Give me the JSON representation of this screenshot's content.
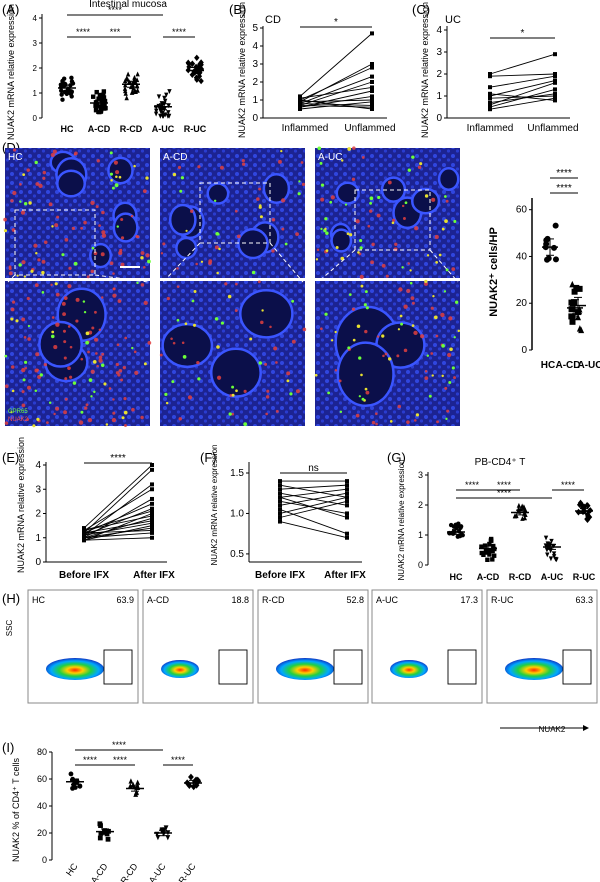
{
  "panels": {
    "A": {
      "letter": "(A)",
      "title": "Intestinal mucosa",
      "ylabel": "NUAK2 mRNA relative expression",
      "yticks": [
        "0",
        "1",
        "2",
        "3",
        "4"
      ],
      "categories": [
        "HC",
        "A-CD",
        "R-CD",
        "A-UC",
        "R-UC"
      ],
      "sig": [
        "****",
        "****",
        "***",
        "****"
      ]
    },
    "B": {
      "letter": "(B)",
      "tag": "CD",
      "ylabel": "NUAK2 mRNA relative expression",
      "yticks": [
        "0",
        "1",
        "2",
        "3",
        "4",
        "5"
      ],
      "categories": [
        "Inflammed",
        "Unflammed"
      ],
      "sig": "*"
    },
    "C": {
      "letter": "(C)",
      "tag": "UC",
      "ylabel": "NUAK2 mRNA relative expression",
      "yticks": [
        "0",
        "1",
        "2",
        "3",
        "4"
      ],
      "categories": [
        "Inflammed",
        "Unflammed"
      ],
      "sig": "*"
    },
    "D": {
      "letter": "(D)",
      "images": [
        "HC",
        "A-CD",
        "A-UC"
      ],
      "legend_green": "GPR65",
      "legend_red": "NUAK2",
      "ylabel": "NUAK2⁺ cells/HP",
      "yticks": [
        "0",
        "20",
        "40",
        "60"
      ],
      "categories": [
        "HC",
        "A-CD",
        "A-UC"
      ],
      "sig": [
        "****",
        "****"
      ]
    },
    "E": {
      "letter": "(E)",
      "ylabel": "NUAK2 mRNA relative expression",
      "yticks": [
        "0",
        "1",
        "2",
        "3",
        "4"
      ],
      "categories": [
        "Before IFX",
        "After IFX"
      ],
      "sig": "****"
    },
    "F": {
      "letter": "(F)",
      "ylabel": "NUAK2 mRNA relative expression",
      "yticks": [
        "0.5",
        "1.0",
        "1.5"
      ],
      "categories": [
        "Before IFX",
        "After IFX"
      ],
      "sig": "ns"
    },
    "G": {
      "letter": "(G)",
      "title": "PB-CD4⁺ T",
      "ylabel": "NUAK2 mRNA relative expression",
      "yticks": [
        "0",
        "1",
        "2",
        "3"
      ],
      "categories": [
        "HC",
        "A-CD",
        "R-CD",
        "A-UC",
        "R-UC"
      ],
      "sig": [
        "****",
        "****",
        "****",
        "****"
      ]
    },
    "H": {
      "letter": "(H)",
      "yaxis": "SSC",
      "xaxis": "NUAK2",
      "plots": [
        {
          "name": "HC",
          "value": "63.9"
        },
        {
          "name": "A-CD",
          "value": "18.8"
        },
        {
          "name": "R-CD",
          "value": "52.8"
        },
        {
          "name": "A-UC",
          "value": "17.3"
        },
        {
          "name": "R-UC",
          "value": "63.3"
        }
      ]
    },
    "I": {
      "letter": "(I)",
      "ylabel": "NUAK2 % of CD4⁺ T cells",
      "yticks": [
        "0",
        "20",
        "40",
        "60",
        "80"
      ],
      "categories": [
        "HC",
        "A-CD",
        "R-CD",
        "A-UC",
        "R-UC"
      ],
      "sig": [
        "****",
        "****",
        "****",
        "****"
      ]
    }
  },
  "colors": {
    "image_bg": "#1a1f8f",
    "nuclei": "#2b3fd8",
    "red": "#e04040",
    "green": "#6cff3a"
  },
  "chart_data": [
    {
      "type": "scatter",
      "panel": "A",
      "categories": [
        "HC",
        "A-CD",
        "R-CD",
        "A-UC",
        "R-UC"
      ],
      "means": [
        1.2,
        0.6,
        1.35,
        0.45,
        1.9
      ],
      "ylim": [
        0,
        4
      ]
    },
    {
      "type": "line",
      "panel": "B",
      "x": [
        "Inflammed",
        "Unflammed"
      ],
      "ylim": [
        0,
        5
      ],
      "pairs": [
        [
          1.2,
          4.7
        ],
        [
          0.9,
          3.0
        ],
        [
          1.0,
          2.8
        ],
        [
          0.8,
          2.3
        ],
        [
          0.7,
          2.0
        ],
        [
          1.1,
          1.7
        ],
        [
          0.6,
          1.2
        ],
        [
          0.9,
          1.0
        ],
        [
          0.5,
          0.9
        ],
        [
          0.8,
          0.7
        ],
        [
          0.7,
          0.6
        ],
        [
          1.0,
          0.5
        ],
        [
          0.6,
          1.5
        ]
      ]
    },
    {
      "type": "line",
      "panel": "C",
      "x": [
        "Inflammed",
        "Unflammed"
      ],
      "ylim": [
        0,
        4
      ],
      "pairs": [
        [
          2.0,
          2.9
        ],
        [
          1.9,
          2.0
        ],
        [
          1.4,
          1.9
        ],
        [
          1.0,
          1.7
        ],
        [
          0.6,
          1.6
        ],
        [
          0.5,
          1.3
        ],
        [
          0.9,
          1.0
        ],
        [
          0.4,
          0.9
        ],
        [
          0.7,
          1.1
        ],
        [
          1.1,
          0.8
        ]
      ]
    },
    {
      "type": "scatter",
      "panel": "D",
      "categories": [
        "HC",
        "A-CD",
        "A-UC"
      ],
      "means": [
        44,
        18,
        19
      ],
      "ylim": [
        0,
        65
      ]
    },
    {
      "type": "line",
      "panel": "E",
      "x": [
        "Before IFX",
        "After IFX"
      ],
      "ylim": [
        0,
        4
      ],
      "pairs": [
        [
          1.4,
          4.0
        ],
        [
          1.2,
          3.8
        ],
        [
          1.1,
          3.2
        ],
        [
          1.3,
          3.0
        ],
        [
          1.0,
          2.6
        ],
        [
          1.2,
          2.4
        ],
        [
          1.1,
          2.2
        ],
        [
          0.9,
          2.0
        ],
        [
          1.3,
          1.9
        ],
        [
          1.0,
          1.8
        ],
        [
          1.2,
          1.7
        ],
        [
          1.1,
          1.6
        ],
        [
          0.9,
          1.5
        ],
        [
          1.0,
          1.4
        ],
        [
          1.2,
          1.3
        ],
        [
          1.0,
          1.2
        ],
        [
          1.3,
          2.1
        ],
        [
          0.9,
          1.0
        ]
      ]
    },
    {
      "type": "line",
      "panel": "F",
      "x": [
        "Before IFX",
        "After IFX"
      ],
      "ylim": [
        0.4,
        1.5
      ],
      "pairs": [
        [
          1.4,
          1.4
        ],
        [
          1.35,
          1.2
        ],
        [
          1.3,
          1.35
        ],
        [
          1.2,
          1.3
        ],
        [
          1.15,
          1.0
        ],
        [
          1.1,
          1.25
        ],
        [
          1.05,
          0.75
        ],
        [
          1.0,
          1.2
        ],
        [
          0.95,
          1.15
        ],
        [
          0.9,
          0.7
        ],
        [
          1.2,
          0.95
        ],
        [
          1.25,
          1.1
        ]
      ]
    },
    {
      "type": "scatter",
      "panel": "G",
      "categories": [
        "HC",
        "A-CD",
        "R-CD",
        "A-UC",
        "R-UC"
      ],
      "means": [
        1.1,
        0.55,
        1.75,
        0.6,
        1.8
      ],
      "ylim": [
        0,
        3
      ]
    },
    {
      "type": "scatter",
      "panel": "I",
      "categories": [
        "HC",
        "A-CD",
        "R-CD",
        "A-UC",
        "R-UC"
      ],
      "means": [
        58,
        21,
        53,
        20,
        57
      ],
      "ylim": [
        0,
        80
      ]
    }
  ]
}
